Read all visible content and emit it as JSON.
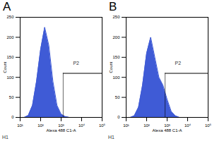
{
  "chart_data": [
    {
      "type": "area",
      "panel": "A",
      "annotation": "H1",
      "log": "x",
      "xlabel": "Alexa 488 C1-A",
      "ylabel": "Count",
      "color": "#3f5bd6",
      "x": [
        10,
        16,
        25,
        40,
        63,
        100,
        158,
        251,
        398,
        631,
        1000,
        1585,
        2512,
        3981,
        6310,
        10000,
        15849,
        25119,
        39811,
        63096,
        100000
      ],
      "values": [
        0,
        0,
        5,
        30,
        90,
        170,
        225,
        180,
        90,
        30,
        8,
        2,
        0,
        0,
        0,
        0,
        0,
        0,
        0,
        0,
        0
      ],
      "xlim": [
        10,
        100000
      ],
      "xticks": [
        {
          "value": 10,
          "label": "10¹"
        },
        {
          "value": 100,
          "label": "10²"
        },
        {
          "value": 1000,
          "label": "10³"
        },
        {
          "value": 10000,
          "label": "10⁴"
        },
        {
          "value": 100000,
          "label": "10⁵"
        }
      ],
      "ylim": [
        0,
        250
      ],
      "yticks": [
        0,
        50,
        100,
        150,
        200,
        250
      ],
      "gate": {
        "label": "P2",
        "x": [
          1259,
          100000
        ],
        "y": 110
      }
    },
    {
      "type": "area",
      "panel": "B",
      "annotation": "H1",
      "log": "x",
      "xlabel": "Alexa 488 C1-A",
      "ylabel": "Count",
      "color": "#3f5bd6",
      "x": [
        10,
        16,
        25,
        40,
        63,
        100,
        158,
        251,
        398,
        631,
        1000,
        1585,
        2512,
        3981,
        6310,
        10000,
        15849,
        25119,
        39811,
        63096,
        100000
      ],
      "values": [
        0,
        0,
        4,
        25,
        80,
        160,
        200,
        150,
        100,
        80,
        45,
        15,
        4,
        0,
        0,
        0,
        0,
        0,
        0,
        0,
        0
      ],
      "xlim": [
        10,
        100000
      ],
      "xticks": [
        {
          "value": 10,
          "label": "10¹"
        },
        {
          "value": 100,
          "label": "10²"
        },
        {
          "value": 1000,
          "label": "10³"
        },
        {
          "value": 10000,
          "label": "10⁴"
        },
        {
          "value": 100000,
          "label": "10⁵"
        }
      ],
      "ylim": [
        0,
        250
      ],
      "yticks": [
        0,
        50,
        100,
        150,
        200,
        250
      ],
      "gate": {
        "label": "P2",
        "x": [
          794,
          100000
        ],
        "y": 110
      }
    }
  ]
}
